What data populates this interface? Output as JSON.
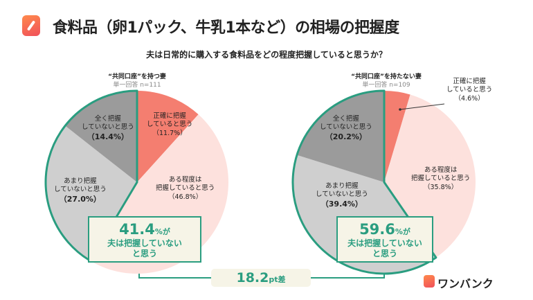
{
  "header": {
    "title": "食料品（卵1パック、牛乳1本など）の相場の把握度",
    "question": "夫は日常的に購入する食料品をどの程度把握していると思うか？"
  },
  "colors": {
    "accurate": "#f47e70",
    "somewhat": "#fde1dd",
    "not_much": "#cfcfcf",
    "not_at_all": "#9b9b9b",
    "accent": "#2a9d80"
  },
  "chart_data": [
    {
      "type": "pie",
      "title": "“共同口座”を持つ妻",
      "subtitle": "単一回答 n=111",
      "start": "12 o'clock clockwise",
      "slices": [
        {
          "label": "正確に把握していると思う",
          "value": 11.7,
          "text": "（11.7%）"
        },
        {
          "label": "ある程度は把握していると思う",
          "value": 46.8,
          "text": "（46.8%）"
        },
        {
          "label": "あまり把握していないと思う",
          "value": 27.0,
          "text": "（27.0%）"
        },
        {
          "label": "全く把握していないと思う",
          "value": 14.4,
          "text": "（14.4%）"
        }
      ],
      "callout": {
        "value": "41.4",
        "unit": "%が",
        "line1": "夫は把握していない",
        "line2": "と思う"
      }
    },
    {
      "type": "pie",
      "title": "“共同口座”を持たない妻",
      "subtitle": "単一回答 n=109",
      "start": "12 o'clock clockwise",
      "slices": [
        {
          "label": "正確に把握していると思う",
          "value": 4.6,
          "text": "（4.6%）"
        },
        {
          "label": "ある程度は把握していると思う",
          "value": 35.8,
          "text": "（35.8%）"
        },
        {
          "label": "あまり把握していないと思う",
          "value": 39.4,
          "text": "（39.4%）"
        },
        {
          "label": "全く把握していないと思う",
          "value": 20.2,
          "text": "（20.2%）"
        }
      ],
      "callout": {
        "value": "59.6",
        "unit": "%が",
        "line1": "夫は把握していない",
        "line2": "と思う"
      }
    }
  ],
  "label_lines": {
    "accurate": [
      "正確に把握",
      "していると思う"
    ],
    "somewhat": [
      "ある程度は",
      "把握していると思う"
    ],
    "not_much": [
      "あまり把握",
      "していないと思う"
    ],
    "not_at_all": [
      "全く把握",
      "していないと思う"
    ]
  },
  "difference": {
    "value": "18.2",
    "unit": "pt差"
  },
  "brand": "ワンバンク"
}
